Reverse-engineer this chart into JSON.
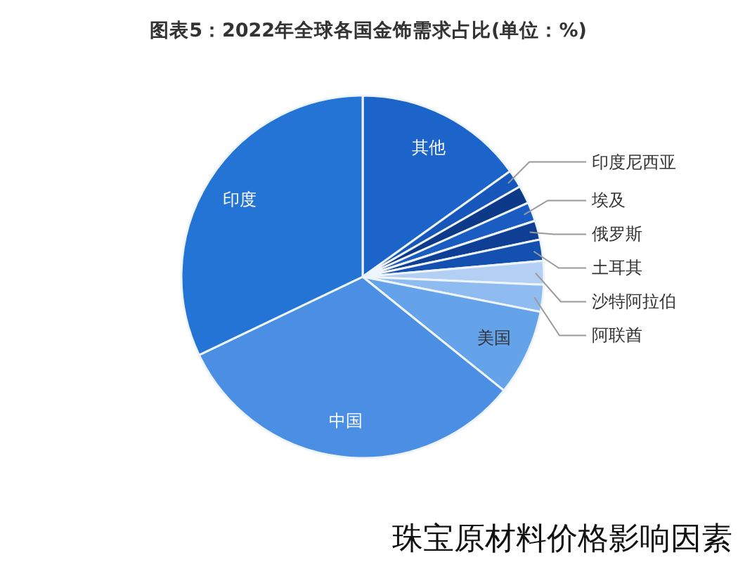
{
  "chart_data": {
    "type": "pie",
    "title": "图表5：2022年全球各国金饰需求占比(单位：%)",
    "categories": [
      "其他",
      "印度尼西亚",
      null,
      "埃及",
      "俄罗斯",
      "土耳其",
      "沙特阿拉伯",
      "阿联酋",
      "美国",
      "中国",
      "印度"
    ],
    "values": [
      15.1,
      1.6,
      1.6,
      1.7,
      1.7,
      1.9,
      2.1,
      2.4,
      7.7,
      32.1,
      32.1
    ],
    "colors": [
      "#1c64c9",
      "#1757bb",
      "#0c3a88",
      "#1a5cc2",
      "#0e3f94",
      "#1450b0",
      "#b3d0f4",
      "#8fbcf0",
      "#64a2ea",
      "#4a8fe4",
      "#2474d6"
    ],
    "annotations": [
      "珠宝原材料价格影响因素"
    ]
  }
}
